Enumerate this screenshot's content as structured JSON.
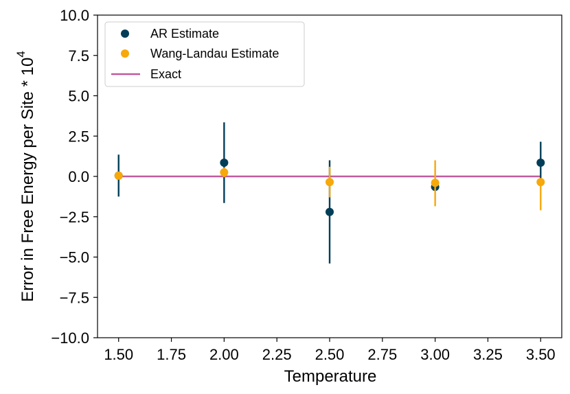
{
  "chart_data": {
    "type": "scatter",
    "xlabel": "Temperature",
    "ylabel": "Error in Free Energy per Site * 10",
    "ylabel_exponent": "4",
    "xlim": [
      1.4,
      3.6
    ],
    "ylim": [
      -10.0,
      10.0
    ],
    "xticks": [
      1.5,
      1.75,
      2.0,
      2.25,
      2.5,
      2.75,
      3.0,
      3.25,
      3.5
    ],
    "xtick_labels": [
      "1.50",
      "1.75",
      "2.00",
      "2.25",
      "2.50",
      "2.75",
      "3.00",
      "3.25",
      "3.50"
    ],
    "yticks": [
      -10.0,
      -7.5,
      -5.0,
      -2.5,
      0.0,
      2.5,
      5.0,
      7.5,
      10.0
    ],
    "ytick_labels": [
      "−10.0",
      "−7.5",
      "−5.0",
      "−2.5",
      "0.0",
      "2.5",
      "5.0",
      "7.5",
      "10.0"
    ],
    "grid": false,
    "legend_position": "top-left",
    "series": [
      {
        "name": "AR Estimate",
        "kind": "errorbar-scatter",
        "color": "#023e58",
        "x": [
          1.5,
          2.0,
          2.5,
          3.0,
          3.5
        ],
        "y": [
          0.05,
          0.85,
          -2.2,
          -0.65,
          0.85
        ],
        "yerr_low": [
          1.3,
          2.5,
          3.2,
          0.0,
          1.3
        ],
        "yerr_high": [
          1.3,
          2.5,
          3.2,
          0.0,
          1.3
        ]
      },
      {
        "name": "Wang-Landau Estimate",
        "kind": "errorbar-scatter",
        "color": "#f7a80a",
        "x": [
          1.5,
          2.0,
          2.5,
          3.0,
          3.5
        ],
        "y": [
          0.05,
          0.25,
          -0.35,
          -0.4,
          -0.35
        ],
        "yerr_low": [
          0.0,
          0.3,
          0.95,
          1.45,
          1.75
        ],
        "yerr_high": [
          0.0,
          0.3,
          0.95,
          1.4,
          0.0
        ]
      },
      {
        "name": "Exact",
        "kind": "line",
        "color": "#c05a9c",
        "x": [
          1.5,
          3.5
        ],
        "y": [
          0.0,
          0.0
        ]
      }
    ]
  }
}
